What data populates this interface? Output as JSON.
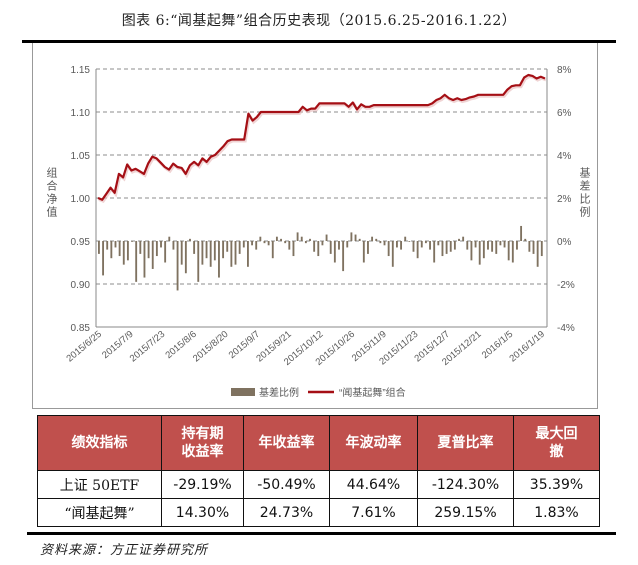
{
  "title": "图表 6:“闻基起舞”组合历史表现（2015.6.25-2016.1.22）",
  "chart_data": {
    "type": "bar+line",
    "title": "图表 6:“闻基起舞”组合历史表现（2015.6.25-2016.1.22）",
    "xlabel": "",
    "ylabel_left": "组合净值",
    "ylabel_right": "基差比例",
    "ylim_left": [
      0.85,
      1.15
    ],
    "ylim_right": [
      -0.04,
      0.08
    ],
    "yticks_left": [
      "0.85",
      "0.90",
      "0.95",
      "1.00",
      "1.05",
      "1.10",
      "1.15"
    ],
    "yticks_right": [
      "-4%",
      "-2%",
      "0%",
      "2%",
      "4%",
      "6%",
      "8%"
    ],
    "grid": "horizontal dashed",
    "legend_position": "bottom",
    "categories": [
      "2015/6/25",
      "2015/7/9",
      "2015/7/23",
      "2015/8/6",
      "2015/8/20",
      "2015/9/7",
      "2015/9/21",
      "2015/10/12",
      "2015/10/26",
      "2015/11/9",
      "2015/11/23",
      "2015/12/7",
      "2015/12/21",
      "2016/1/5",
      "2016/1/19"
    ],
    "series": [
      {
        "name": "“闻基起舞”组合",
        "axis": "left",
        "type": "line",
        "color": "#a50f15",
        "values": [
          1.0,
          0.998,
          1.005,
          1.012,
          1.006,
          1.028,
          1.024,
          1.039,
          1.032,
          1.034,
          1.031,
          1.028,
          1.04,
          1.048,
          1.046,
          1.041,
          1.036,
          1.033,
          1.04,
          1.036,
          1.035,
          1.028,
          1.038,
          1.042,
          1.038,
          1.046,
          1.042,
          1.048,
          1.05,
          1.055,
          1.06,
          1.066,
          1.068,
          1.068,
          1.068,
          1.068,
          1.098,
          1.09,
          1.094,
          1.1,
          1.1,
          1.1,
          1.1,
          1.1,
          1.1,
          1.1,
          1.1,
          1.1,
          1.1,
          1.106,
          1.102,
          1.104,
          1.104,
          1.11,
          1.11,
          1.11,
          1.11,
          1.11,
          1.11,
          1.11,
          1.106,
          1.111,
          1.103,
          1.109,
          1.106,
          1.106,
          1.108,
          1.108,
          1.108,
          1.108,
          1.108,
          1.108,
          1.108,
          1.108,
          1.108,
          1.108,
          1.108,
          1.108,
          1.108,
          1.108,
          1.11,
          1.114,
          1.116,
          1.12,
          1.116,
          1.114,
          1.116,
          1.114,
          1.115,
          1.117,
          1.118,
          1.12,
          1.12,
          1.12,
          1.12,
          1.12,
          1.12,
          1.12,
          1.126,
          1.13,
          1.131,
          1.131,
          1.14,
          1.143,
          1.142,
          1.139,
          1.141,
          1.139
        ]
      },
      {
        "name": "基差比例",
        "axis": "right",
        "type": "bar",
        "color": "#7f7260",
        "values": [
          -0.006,
          -0.016,
          -0.004,
          -0.008,
          -0.003,
          -0.007,
          -0.011,
          -0.009,
          0.0,
          -0.019,
          -0.006,
          -0.017,
          -0.008,
          -0.013,
          -0.007,
          -0.003,
          -0.01,
          0.002,
          -0.004,
          -0.023,
          -0.011,
          -0.015,
          0.001,
          -0.006,
          -0.019,
          -0.011,
          -0.008,
          -0.012,
          -0.009,
          -0.017,
          -0.008,
          -0.005,
          -0.012,
          -0.011,
          -0.006,
          -0.003,
          -0.012,
          -0.002,
          -0.004,
          0.002,
          -0.001,
          -0.002,
          -0.008,
          0.002,
          0.001,
          -0.001,
          -0.004,
          -0.007,
          0.004,
          0.002,
          -0.001,
          0.001,
          -0.005,
          -0.007,
          -0.002,
          0.003,
          -0.006,
          -0.01,
          -0.004,
          -0.014,
          -0.003,
          0.004,
          0.003,
          0.001,
          -0.01,
          -0.006,
          0.002,
          0.001,
          -0.001,
          -0.002,
          -0.007,
          -0.012,
          -0.003,
          -0.004,
          0.002,
          0.0,
          -0.005,
          -0.008,
          -0.003,
          -0.001,
          -0.004,
          -0.01,
          -0.002,
          -0.007,
          -0.006,
          -0.005,
          -0.004,
          0.001,
          0.002,
          -0.004,
          -0.009,
          -0.003,
          -0.011,
          -0.008,
          -0.004,
          -0.005,
          -0.006,
          -0.002,
          -0.003,
          -0.009,
          -0.01,
          -0.004,
          0.007,
          0.001,
          -0.005,
          -0.006,
          -0.012,
          -0.007
        ]
      }
    ],
    "legend": [
      "基差比例",
      "“闻基起舞”组合"
    ]
  },
  "chart": {
    "ylabel_left": "组合净值",
    "ylabel_right": "基差比例",
    "yticks_left": [
      "1.15",
      "1.10",
      "1.05",
      "1.00",
      "0.95",
      "0.90",
      "0.85"
    ],
    "yticks_right": [
      "8%",
      "6%",
      "4%",
      "2%",
      "0%",
      "-2%",
      "-4%"
    ],
    "xticks": [
      "2015/6/25",
      "2015/7/9",
      "2015/7/23",
      "2015/8/6",
      "2015/8/20",
      "2015/9/7",
      "2015/9/21",
      "2015/10/12",
      "2015/10/26",
      "2015/11/9",
      "2015/11/23",
      "2015/12/7",
      "2015/12/21",
      "2016/1/5",
      "2016/1/19"
    ],
    "legend": {
      "bar_label": "基差比例",
      "line_label": "“闻基起舞”组合"
    },
    "colors": {
      "line": "#a50f15",
      "bar": "#7f7260",
      "grid": "#8c8c8c"
    }
  },
  "table": {
    "headers": [
      "绩效指标",
      "持有期\n收益率",
      "年收益率",
      "年波动率",
      "夏普比率",
      "最大回\n撤"
    ],
    "header_color": "#c0504d",
    "rows": [
      {
        "label": "上证 50ETF",
        "values": [
          "-29.19%",
          "-50.49%",
          "44.64%",
          "-124.30%",
          "35.39%"
        ]
      },
      {
        "label": "“闻基起舞”",
        "values": [
          "14.30%",
          "24.73%",
          "7.61%",
          "259.15%",
          "1.83%"
        ]
      }
    ]
  },
  "source": "资料来源：方正证券研究所"
}
